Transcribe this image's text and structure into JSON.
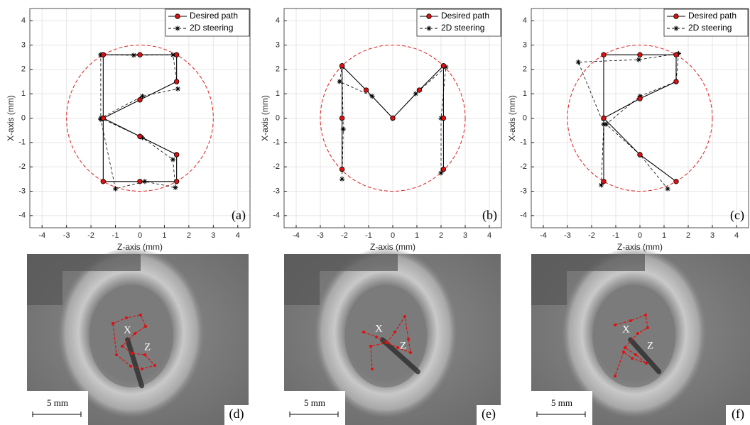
{
  "chart_data": [
    {
      "type": "line",
      "panel_label": "(a)",
      "xlabel": "Z-axis (mm)",
      "ylabel": "X-axis (mm)",
      "xlim": [
        -4.5,
        4.5
      ],
      "ylim": [
        -4.5,
        4.5
      ],
      "xticks": [
        -4,
        -3,
        -2,
        -1,
        0,
        1,
        2,
        3,
        4
      ],
      "yticks": [
        -4,
        -3,
        -2,
        -1,
        0,
        1,
        2,
        3,
        4
      ],
      "grid": true,
      "legend": "upper right",
      "circle_radius": 3,
      "circle_color": "#e02020",
      "series": [
        {
          "name": "Desired path",
          "color": "#000000",
          "marker": "o",
          "marker_color": "#e01010",
          "line_style": "solid",
          "x": [
            -1.5,
            0,
            1.5,
            1.5,
            0,
            -1.5,
            0,
            1.5,
            1.5,
            0,
            -1.5,
            -1.5,
            -1.5
          ],
          "values": [
            2.6,
            2.6,
            2.6,
            1.5,
            0.75,
            0,
            -0.75,
            -1.5,
            -2.6,
            -2.6,
            -2.6,
            0,
            2.6
          ]
        },
        {
          "name": "2D steering",
          "color": "#000000",
          "marker": "*",
          "marker_color": "#000000",
          "line_style": "dashed",
          "x": [
            -1.6,
            -0.25,
            1.35,
            1.55,
            0.1,
            -1.6,
            0.1,
            1.35,
            1.45,
            0.2,
            -1.0,
            -1.6,
            -1.6
          ],
          "values": [
            2.6,
            2.58,
            2.6,
            1.2,
            0.9,
            0,
            -0.8,
            -1.7,
            -2.85,
            -2.6,
            -2.9,
            -0.05,
            2.6
          ]
        }
      ]
    },
    {
      "type": "line",
      "panel_label": "(b)",
      "xlabel": "Z-axis (mm)",
      "ylabel": "X-axis (mm)",
      "xlim": [
        -4.5,
        4.5
      ],
      "ylim": [
        -4.5,
        4.5
      ],
      "xticks": [
        -4,
        -3,
        -2,
        -1,
        0,
        1,
        2,
        3,
        4
      ],
      "yticks": [
        -4,
        -3,
        -2,
        -1,
        0,
        1,
        2,
        3,
        4
      ],
      "grid": true,
      "legend": "upper right",
      "circle_radius": 3,
      "circle_color": "#e02020",
      "series": [
        {
          "name": "Desired path",
          "color": "#000000",
          "marker": "o",
          "marker_color": "#e01010",
          "line_style": "solid",
          "x": [
            -2.1,
            -2.1,
            -2.1,
            -1.1,
            0,
            1.1,
            2.1,
            2.1,
            2.1
          ],
          "values": [
            -2.1,
            0,
            2.15,
            1.15,
            0,
            1.15,
            2.15,
            0,
            -2.1
          ]
        },
        {
          "name": "2D steering",
          "color": "#000000",
          "marker": "*",
          "marker_color": "#000000",
          "line_style": "dashed",
          "x": [
            -2.1,
            -2.05,
            -2.1,
            -2.2,
            -0.85,
            0,
            0.95,
            2.2,
            2.0,
            2.0
          ],
          "values": [
            -2.5,
            -0.45,
            2.1,
            1.5,
            0.9,
            0,
            1.0,
            2.1,
            0,
            -2.25
          ]
        }
      ]
    },
    {
      "type": "line",
      "panel_label": "(c)",
      "xlabel": "Z-axis (mm)",
      "ylabel": "X-axis (mm)",
      "xlim": [
        -4.5,
        4.5
      ],
      "ylim": [
        -4.5,
        4.5
      ],
      "xticks": [
        -4,
        -3,
        -2,
        -1,
        0,
        1,
        2,
        3,
        4
      ],
      "yticks": [
        -4,
        -3,
        -2,
        -1,
        0,
        1,
        2,
        3,
        4
      ],
      "grid": true,
      "legend": "upper right",
      "circle_radius": 3,
      "circle_color": "#e02020",
      "series": [
        {
          "name": "Desired path",
          "color": "#000000",
          "marker": "o",
          "marker_color": "#e01010",
          "line_style": "solid",
          "x": [
            -1.5,
            -1.5,
            -1.5,
            0,
            1.5,
            1.5,
            0,
            -1.5,
            0,
            1.5
          ],
          "values": [
            -2.6,
            0,
            2.6,
            2.6,
            2.6,
            1.5,
            0.8,
            0,
            -1.5,
            -2.6
          ]
        },
        {
          "name": "2D steering",
          "color": "#000000",
          "marker": "*",
          "marker_color": "#000000",
          "line_style": "dashed",
          "x": [
            -1.6,
            -1.5,
            -2.55,
            -0.05,
            1.6,
            1.5,
            0,
            -1.4,
            0,
            1.15
          ],
          "values": [
            -2.75,
            -0.25,
            2.3,
            2.4,
            2.65,
            1.5,
            0.9,
            -0.25,
            -1.5,
            -2.9
          ]
        }
      ]
    }
  ],
  "images": [
    {
      "panel_label": "(d)",
      "scale_bar": "5 mm",
      "x_label": "X",
      "z_label": "Z"
    },
    {
      "panel_label": "(e)",
      "scale_bar": "5 mm",
      "x_label": "X",
      "z_label": "Z"
    },
    {
      "panel_label": "(f)",
      "scale_bar": "5 mm",
      "x_label": "X",
      "z_label": "Z"
    }
  ]
}
